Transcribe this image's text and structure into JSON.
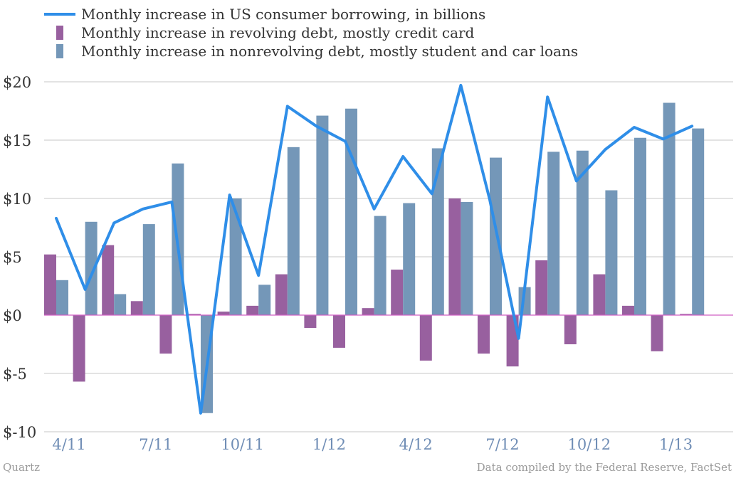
{
  "colors": {
    "line": "#2f8ee8",
    "revolving": "#98609f",
    "nonrevolving": "#7497b8",
    "zero_line": "#d05fc3",
    "grid": "#c7c7c7",
    "x_tick_text": "#6f8db5"
  },
  "chart_data": {
    "type": "bar",
    "legend": {
      "items": [
        {
          "label": "Monthly increase in US consumer borrowing, in billions",
          "symbol": "line",
          "color_key": "line"
        },
        {
          "label": "Monthly increase in revolving debt, mostly credit card",
          "symbol": "bar",
          "color_key": "revolving"
        },
        {
          "label": "Monthly increase in nonrevolving debt, mostly student and car loans",
          "symbol": "bar",
          "color_key": "nonrevolving"
        }
      ],
      "position": "top-left"
    },
    "ylim": [
      -10,
      20
    ],
    "y_ticks": [
      {
        "value": 20,
        "label": "$20"
      },
      {
        "value": 15,
        "label": "$15"
      },
      {
        "value": 10,
        "label": "$10"
      },
      {
        "value": 5,
        "label": "$5"
      },
      {
        "value": 0,
        "label": "$0"
      },
      {
        "value": -5,
        "label": "$-5"
      },
      {
        "value": -10,
        "label": "$-10"
      }
    ],
    "grid": true,
    "months": [
      "4/11",
      "5/11",
      "6/11",
      "7/11",
      "8/11",
      "9/11",
      "10/11",
      "11/11",
      "12/11",
      "1/12",
      "2/12",
      "3/12",
      "4/12",
      "5/12",
      "6/12",
      "7/12",
      "8/12",
      "9/12",
      "10/12",
      "11/12",
      "12/12",
      "1/13",
      "2/13"
    ],
    "x_tick_labels": [
      "4/11",
      "7/11",
      "10/11",
      "1/12",
      "4/12",
      "7/12",
      "10/12",
      "1/13"
    ],
    "series": [
      {
        "name": "Monthly increase in US consumer borrowing, in billions",
        "type": "line",
        "values": [
          8.3,
          2.2,
          7.9,
          9.1,
          9.7,
          -8.4,
          10.3,
          3.4,
          17.9,
          16.2,
          14.9,
          9.1,
          13.6,
          10.4,
          19.7,
          9.9,
          -2.0,
          18.7,
          11.5,
          14.2,
          16.1,
          15.1,
          16.2
        ]
      },
      {
        "name": "Monthly increase in revolving debt, mostly credit card",
        "type": "bar",
        "values": [
          5.2,
          -5.7,
          6.0,
          1.2,
          -3.3,
          0.1,
          0.3,
          0.8,
          3.5,
          -1.1,
          -2.8,
          0.6,
          3.9,
          -3.9,
          10.0,
          -3.3,
          -4.4,
          4.7,
          -2.5,
          3.5,
          0.8,
          -3.1,
          0.1
        ]
      },
      {
        "name": "Monthly increase in nonrevolving debt, mostly student and car loans",
        "type": "bar",
        "values": [
          3.0,
          8.0,
          1.8,
          7.8,
          13.0,
          -8.4,
          10.0,
          2.6,
          14.4,
          17.1,
          17.7,
          8.5,
          9.6,
          14.3,
          9.7,
          13.5,
          2.4,
          14.0,
          14.1,
          10.7,
          15.2,
          18.2,
          16.0
        ]
      }
    ]
  },
  "footer": {
    "source_left": "Quartz",
    "source_right": "Data compiled by the Federal Reserve, FactSet"
  }
}
